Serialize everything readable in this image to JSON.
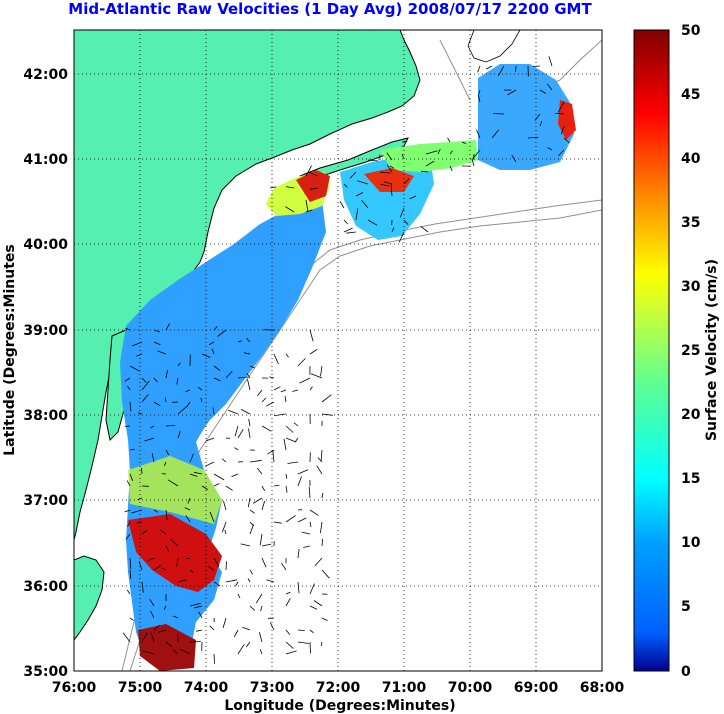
{
  "title": "Mid-Atlantic Raw Velocities (1 Day Avg) 2008/07/17 2200 GMT",
  "xlabel": "Longitude (Degrees:Minutes)",
  "ylabel": "Latitude (Degrees:Minutes",
  "colorbar_label": "Surface Velocity (cm/s)",
  "x_ticks": [
    "76:00",
    "75:00",
    "74:00",
    "73:00",
    "72:00",
    "71:00",
    "70:00",
    "69:00",
    "68:00"
  ],
  "y_ticks": [
    "42:00",
    "41:00",
    "40:00",
    "39:00",
    "38:00",
    "37:00",
    "36:00",
    "35:00"
  ],
  "colorbar_ticks": [
    "50",
    "45",
    "40",
    "35",
    "30",
    "25",
    "20",
    "15",
    "10",
    "5",
    "0"
  ],
  "colors": {
    "land": "#55f0b0",
    "coast": "#000000",
    "bathymetry": "#909090",
    "grid": "#000000",
    "title": "#0000ff"
  },
  "map": {
    "lon_range": [
      -76,
      -68
    ],
    "lat_range": [
      35,
      42.5
    ],
    "velocity_range_cm_s": [
      0,
      50
    ],
    "colormap": "jet",
    "grid": "dotted"
  }
}
